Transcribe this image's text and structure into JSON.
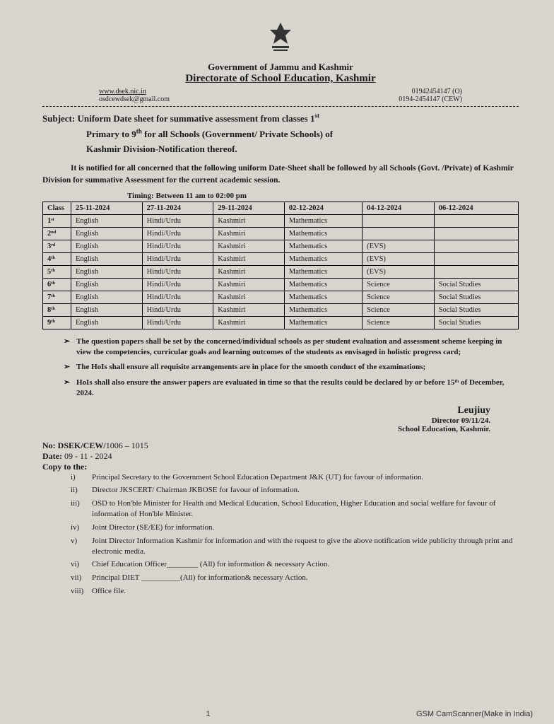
{
  "header": {
    "gov_line": "Government of Jammu and Kashmir",
    "directorate": "Directorate of School Education, Kashmir",
    "website": "www.dsek.nic.in",
    "phone_o": "01942454147 (O)",
    "email": "osdcewdsek@gmail.com",
    "phone_cew": "0194-2454147 (CEW)"
  },
  "subject": {
    "label": "Subject:",
    "line1": "Uniform Date sheet for summative assessment from classes 1",
    "line1_sup": "st",
    "line2": "Primary to 9",
    "line2_sup": "th",
    "line2_cont": " for all Schools (Government/ Private Schools) of",
    "line3": "Kashmir Division-Notification thereof."
  },
  "notification_para": "It is notified for all concerned that the following uniform Date-Sheet shall be followed by all Schools (Govt. /Private) of Kashmir Division for summative Assessment for the current academic session.",
  "timing": "Timing: Between 11 am to 02:00 pm",
  "table": {
    "headers": [
      "Class",
      "25-11-2024",
      "27-11-2024",
      "29-11-2024",
      "02-12-2024",
      "04-12-2024",
      "06-12-2024"
    ],
    "rows": [
      [
        "1ˢᵗ",
        "English",
        "Hindi/Urdu",
        "Kashmiri",
        "Mathematics",
        "",
        ""
      ],
      [
        "2ⁿᵈ",
        "English",
        "Hindi/Urdu",
        "Kashmiri",
        "Mathematics",
        "",
        ""
      ],
      [
        "3ʳᵈ",
        "English",
        "Hindi/Urdu",
        "Kashmiri",
        "Mathematics",
        "(EVS)",
        ""
      ],
      [
        "4ᵗʰ",
        "English",
        "Hindi/Urdu",
        "Kashmiri",
        "Mathematics",
        "(EVS)",
        ""
      ],
      [
        "5ᵗʰ",
        "English",
        "Hindi/Urdu",
        "Kashmiri",
        "Mathematics",
        "(EVS)",
        ""
      ],
      [
        "6ᵗʰ",
        "English",
        "Hindi/Urdu",
        "Kashmiri",
        "Mathematics",
        "Science",
        "Social Studies"
      ],
      [
        "7ᵗʰ",
        "English",
        "Hindi/Urdu",
        "Kashmiri",
        "Mathematics",
        "Science",
        "Social Studies"
      ],
      [
        "8ᵗʰ",
        "English",
        "Hindi/Urdu",
        "Kashmiri",
        "Mathematics",
        "Science",
        "Social Studies"
      ],
      [
        "9ᵗʰ",
        "English",
        "Hindi/Urdu",
        "Kashmiri",
        "Mathematics",
        "Science",
        "Social Studies"
      ]
    ]
  },
  "bullets": [
    "The question papers shall be set by the concerned/individual schools as per student evaluation and assessment scheme keeping in view the competencies, curricular goals and learning outcomes of the students as envisaged in holistic progress card;",
    "The HoIs shall ensure all requisite arrangements are in place for the smooth conduct of the examinations;",
    "HoIs shall also ensure the answer papers are evaluated in time so that the results could be declared by or before 15ᵗʰ of December, 2024."
  ],
  "signature": {
    "sig": "Leujiuy",
    "director_line": "Director",
    "sig_date": "09/11/24.",
    "office": "School Education, Kashmir."
  },
  "ref": {
    "no_label": "No: DSEK/CEW/",
    "no_value": "1006 – 1015",
    "date_label": "Date:",
    "date_value": "09 - 11 - 2024"
  },
  "copy": {
    "label": "Copy to the:",
    "items": [
      {
        "n": "i)",
        "t": "Principal Secretary to the Government School Education Department J&K (UT) for favour of information."
      },
      {
        "n": "ii)",
        "t": "Director JKSCERT/ Chairman JKBOSE for favour of information."
      },
      {
        "n": "iii)",
        "t": "OSD to Hon'ble Minister for Health and Medical Education, School Education, Higher Education and social welfare for favour of information of Hon'ble Minister."
      },
      {
        "n": "iv)",
        "t": "Joint Director (SE/EE) for information."
      },
      {
        "n": "v)",
        "t": "Joint Director Information Kashmir for information and with the request to give the above notification wide publicity through print and electronic media."
      },
      {
        "n": "vi)",
        "t": "Chief Education Officer________ (All) for information & necessary Action."
      },
      {
        "n": "vii)",
        "t": "Principal DIET __________(All) for information& necessary Action."
      },
      {
        "n": "viii)",
        "t": "Office file."
      }
    ]
  },
  "footer": {
    "page": "1",
    "scanner": "GSM CamScanner(Make in India)"
  }
}
